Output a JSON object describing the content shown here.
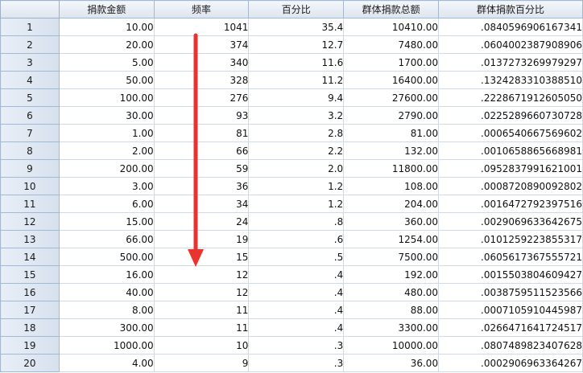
{
  "columns": [
    "捐款金额",
    "频率",
    "百分比",
    "群体捐款总额",
    "群体捐款百分比"
  ],
  "rows": [
    {
      "n": "1",
      "amount": "10.00",
      "freq": "1041",
      "pct": "35.4",
      "total": "10410.00",
      "share": ".0840596906167341"
    },
    {
      "n": "2",
      "amount": "20.00",
      "freq": "374",
      "pct": "12.7",
      "total": "7480.00",
      "share": ".0604002387908906"
    },
    {
      "n": "3",
      "amount": "5.00",
      "freq": "340",
      "pct": "11.6",
      "total": "1700.00",
      "share": ".0137273269979297"
    },
    {
      "n": "4",
      "amount": "50.00",
      "freq": "328",
      "pct": "11.2",
      "total": "16400.00",
      "share": ".1324283310388510"
    },
    {
      "n": "5",
      "amount": "100.00",
      "freq": "276",
      "pct": "9.4",
      "total": "27600.00",
      "share": ".2228671912605050"
    },
    {
      "n": "6",
      "amount": "30.00",
      "freq": "93",
      "pct": "3.2",
      "total": "2790.00",
      "share": ".0225289660730728"
    },
    {
      "n": "7",
      "amount": "1.00",
      "freq": "81",
      "pct": "2.8",
      "total": "81.00",
      "share": ".0006540667569602"
    },
    {
      "n": "8",
      "amount": "2.00",
      "freq": "66",
      "pct": "2.2",
      "total": "132.00",
      "share": ".0010658865668981"
    },
    {
      "n": "9",
      "amount": "200.00",
      "freq": "59",
      "pct": "2.0",
      "total": "11800.00",
      "share": ".0952837991621001"
    },
    {
      "n": "10",
      "amount": "3.00",
      "freq": "36",
      "pct": "1.2",
      "total": "108.00",
      "share": ".0008720890092802"
    },
    {
      "n": "11",
      "amount": "6.00",
      "freq": "34",
      "pct": "1.2",
      "total": "204.00",
      "share": ".0016472792397516"
    },
    {
      "n": "12",
      "amount": "15.00",
      "freq": "24",
      "pct": ".8",
      "total": "360.00",
      "share": ".0029069633642675"
    },
    {
      "n": "13",
      "amount": "66.00",
      "freq": "19",
      "pct": ".6",
      "total": "1254.00",
      "share": ".0101259223855317"
    },
    {
      "n": "14",
      "amount": "500.00",
      "freq": "15",
      "pct": ".5",
      "total": "7500.00",
      "share": ".0605617367555721"
    },
    {
      "n": "15",
      "amount": "16.00",
      "freq": "12",
      "pct": ".4",
      "total": "192.00",
      "share": ".0015503804609427"
    },
    {
      "n": "16",
      "amount": "40.00",
      "freq": "12",
      "pct": ".4",
      "total": "480.00",
      "share": ".0038759511523566"
    },
    {
      "n": "17",
      "amount": "8.00",
      "freq": "11",
      "pct": ".4",
      "total": "88.00",
      "share": ".0007105910445987"
    },
    {
      "n": "18",
      "amount": "300.00",
      "freq": "11",
      "pct": ".4",
      "total": "3300.00",
      "share": ".0266471641724517"
    },
    {
      "n": "19",
      "amount": "1000.00",
      "freq": "10",
      "pct": ".3",
      "total": "10000.00",
      "share": ".0807489823407628"
    },
    {
      "n": "20",
      "amount": "4.00",
      "freq": "9",
      "pct": ".3",
      "total": "36.00",
      "share": ".0002906963364267"
    }
  ],
  "annotation": {
    "type": "arrow-down",
    "color": "#e8332f",
    "icon": "red-down-arrow-icon"
  }
}
